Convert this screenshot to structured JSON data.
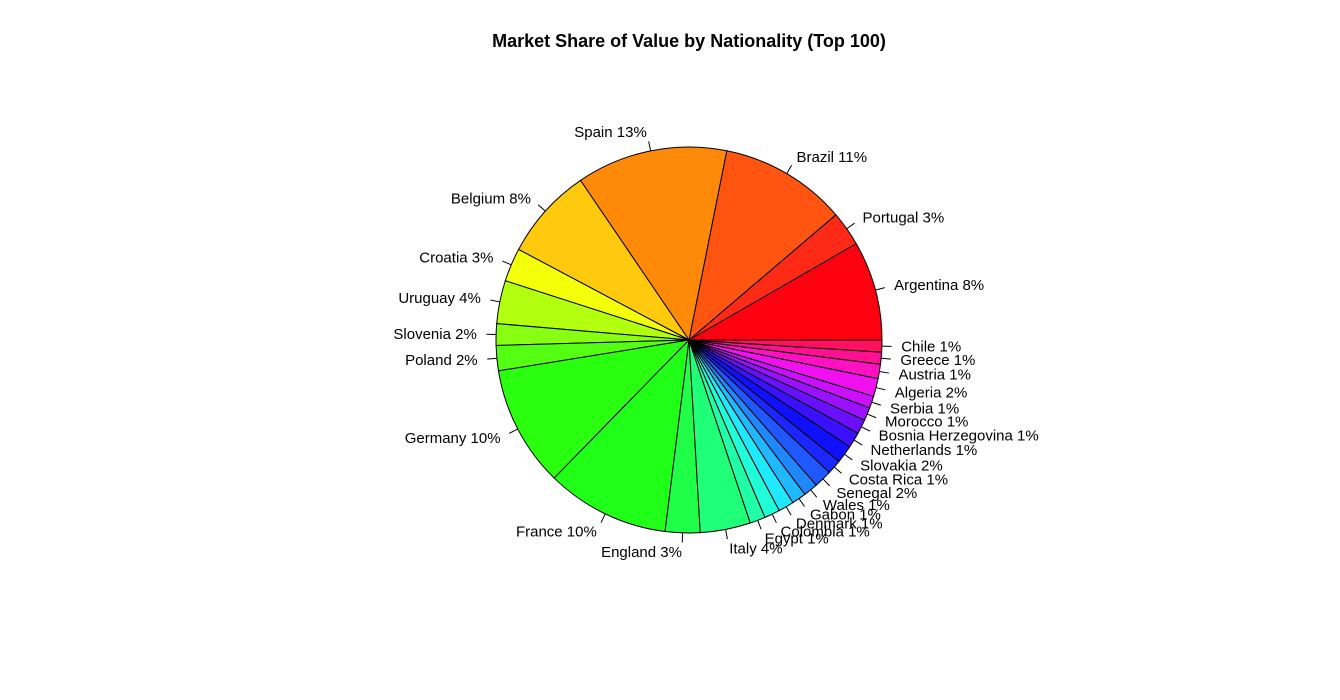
{
  "chart_data": {
    "type": "pie",
    "title": "Market Share of Value by Nationality (Top 100)",
    "direction": "counterclockwise",
    "start": "3 o'clock",
    "slices": [
      {
        "label": "Argentina 8%",
        "name": "Argentina",
        "value": 8.3,
        "color": "#FF0010"
      },
      {
        "label": "Portugal 3%",
        "name": "Portugal",
        "value": 2.9,
        "color": "#FF2A15"
      },
      {
        "label": "Brazil 11%",
        "name": "Brazil",
        "value": 10.6,
        "color": "#FF5510"
      },
      {
        "label": "Spain 13%",
        "name": "Spain",
        "value": 12.6,
        "color": "#FF8A0A"
      },
      {
        "label": "Belgium 8%",
        "name": "Belgium",
        "value": 7.7,
        "color": "#FFCA0E"
      },
      {
        "label": "Croatia 3%",
        "name": "Croatia",
        "value": 2.8,
        "color": "#F4FF0A"
      },
      {
        "label": "Uruguay 4%",
        "name": "Uruguay",
        "value": 3.6,
        "color": "#B3FF10"
      },
      {
        "label": "Slovenia 2%",
        "name": "Slovenia",
        "value": 1.8,
        "color": "#88FF12"
      },
      {
        "label": "Poland 2%",
        "name": "Poland",
        "value": 2.1,
        "color": "#55FF14"
      },
      {
        "label": "Germany 10%",
        "name": "Germany",
        "value": 10.1,
        "color": "#2AFF10"
      },
      {
        "label": "France 10%",
        "name": "France",
        "value": 10.3,
        "color": "#20FF18"
      },
      {
        "label": "England 3%",
        "name": "England",
        "value": 2.9,
        "color": "#20FF48"
      },
      {
        "label": "Italy 4%",
        "name": "Italy",
        "value": 4.2,
        "color": "#20FF78"
      },
      {
        "label": "Egypt 1%",
        "name": "Egypt",
        "value": 1.3,
        "color": "#20FFA8"
      },
      {
        "label": "Colombia 1%",
        "name": "Colombia",
        "value": 1.3,
        "color": "#20FFD8"
      },
      {
        "label": "Denmark 1%",
        "name": "Denmark",
        "value": 1.3,
        "color": "#20E8FF"
      },
      {
        "label": "Gabon 1%",
        "name": "Gabon",
        "value": 1.2,
        "color": "#20B8FF"
      },
      {
        "label": "Wales 1%",
        "name": "Wales",
        "value": 1.2,
        "color": "#2088FF"
      },
      {
        "label": "Senegal 2%",
        "name": "Senegal",
        "value": 1.5,
        "color": "#2058FF"
      },
      {
        "label": "Costa Rica 1%",
        "name": "Costa Rica",
        "value": 1.2,
        "color": "#1A28FF"
      },
      {
        "label": "Slovakia 2%",
        "name": "Slovakia",
        "value": 1.5,
        "color": "#1010FF"
      },
      {
        "label": "Netherlands 1%",
        "name": "Netherlands",
        "value": 1.3,
        "color": "#3A10FF"
      },
      {
        "label": "Bosnia Herzegovina 1%",
        "name": "Bosnia Herzegovina",
        "value": 1.2,
        "color": "#6A10FF"
      },
      {
        "label": "Morocco 1%",
        "name": "Morocco",
        "value": 1.1,
        "color": "#9A10FF"
      },
      {
        "label": "Serbia 1%",
        "name": "Serbia",
        "value": 1.0,
        "color": "#CA10FF"
      },
      {
        "label": "Algeria 2%",
        "name": "Algeria",
        "value": 1.5,
        "color": "#F010F0"
      },
      {
        "label": "Austria 1%",
        "name": "Austria",
        "value": 1.2,
        "color": "#FF10C0"
      },
      {
        "label": "Greece 1%",
        "name": "Greece",
        "value": 1.0,
        "color": "#FF1090"
      },
      {
        "label": "Chile 1%",
        "name": "Chile",
        "value": 1.0,
        "color": "#FF1060"
      }
    ]
  }
}
